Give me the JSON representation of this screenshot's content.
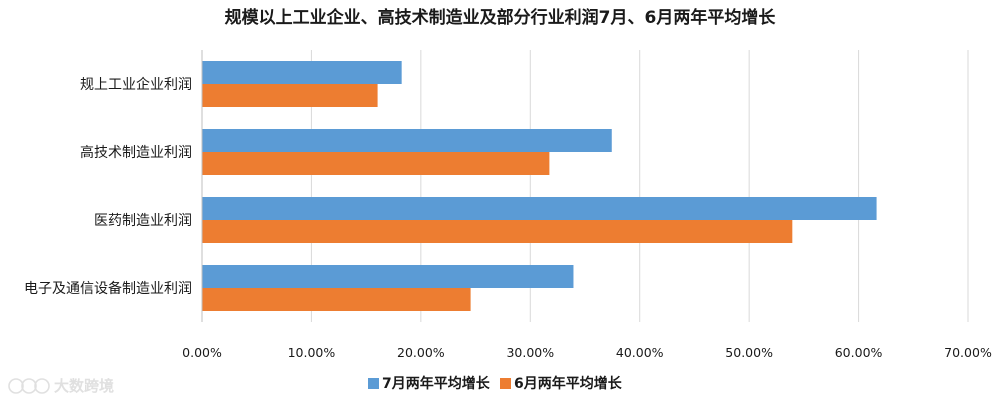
{
  "chart_data": {
    "type": "bar",
    "orientation": "horizontal",
    "title": "规模以上工业企业、高技术制造业及部分行业利润7月、6月两年平均增长",
    "categories": [
      "规上工业企业利润",
      "高技术制造业利润",
      "医药制造业利润",
      "电子及通信设备制造业利润"
    ],
    "series": [
      {
        "name": "7月两年平均增长",
        "color": "#5b9bd5",
        "values": [
          18.2,
          37.4,
          61.6,
          33.9
        ]
      },
      {
        "name": "6月两年平均增长",
        "color": "#ed7d31",
        "values": [
          16.0,
          31.7,
          53.9,
          24.5
        ]
      }
    ],
    "xlim": [
      0,
      70
    ],
    "xticks": [
      "0.00%",
      "10.00%",
      "20.00%",
      "30.00%",
      "40.00%",
      "50.00%",
      "60.00%",
      "70.00%"
    ],
    "xlabel": "",
    "ylabel": "",
    "grid": "vertical",
    "legend": "bottom"
  },
  "watermark": {
    "text": "大数跨境",
    "icon": "brand-logo-icon"
  }
}
